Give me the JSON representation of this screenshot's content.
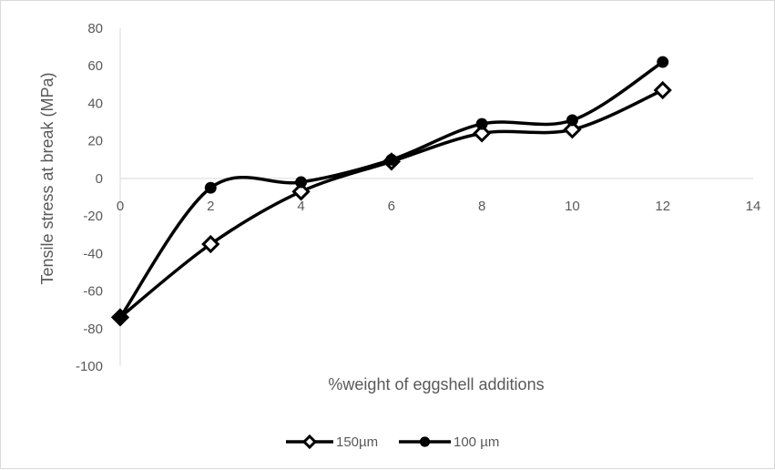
{
  "chart_data": {
    "type": "line",
    "title": "",
    "xlabel": "%weight of eggshell additions",
    "ylabel": "Tensile stress at break (MPa)",
    "xlim": [
      0,
      14
    ],
    "ylim": [
      -100,
      80
    ],
    "x_ticks": [
      0,
      2,
      4,
      6,
      8,
      10,
      12,
      14
    ],
    "y_ticks": [
      80,
      60,
      40,
      20,
      0,
      -20,
      -40,
      -60,
      -80,
      -100
    ],
    "smooth": true,
    "grid": false,
    "legend_position": "bottom",
    "series": [
      {
        "name": "150µm",
        "marker": "diamond",
        "color": "#000000",
        "x": [
          0,
          2,
          4,
          6,
          8,
          10,
          12
        ],
        "y": [
          -74,
          -35,
          -7,
          9,
          24,
          26,
          47
        ]
      },
      {
        "name": "100 µm",
        "marker": "circle",
        "color": "#000000",
        "x": [
          0,
          2,
          4,
          6,
          8,
          10,
          12
        ],
        "y": [
          -74,
          -5,
          -2,
          10,
          29,
          31,
          62
        ]
      }
    ]
  }
}
